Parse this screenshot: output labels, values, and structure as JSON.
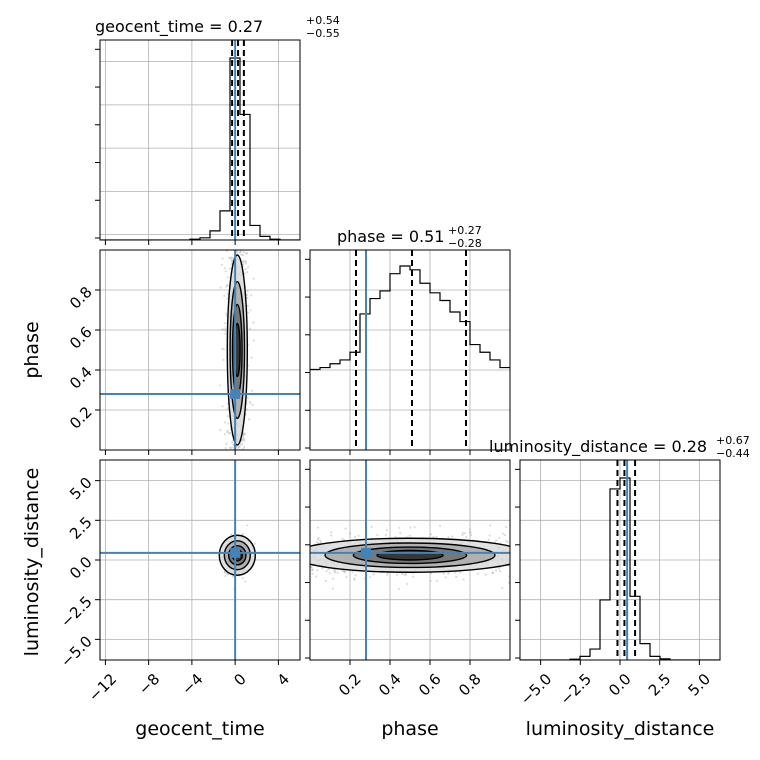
{
  "chart_data": {
    "type": "scatter",
    "parameters": [
      "geocent_time",
      "phase",
      "luminosity_distance"
    ],
    "truths": {
      "geocent_time": 0.0,
      "phase": 0.28,
      "luminosity_distance": 0.45
    },
    "colors": {
      "truth": "#4682b4",
      "hist": "#000000",
      "grid": "#b0b0b0",
      "scatter": "#9a9a9a",
      "density": "#000000"
    },
    "grid": true,
    "titles": {
      "geocent_time": {
        "prefix": "geocent_time = 0.27",
        "plus": "+0.54",
        "minus": "−0.55"
      },
      "phase": {
        "prefix": "phase = 0.51",
        "plus": "+0.27",
        "minus": "−0.28"
      },
      "luminosity_distance": {
        "prefix": "luminosity_distance = 0.28",
        "plus": "+0.67",
        "minus": "−0.44"
      }
    },
    "axes": {
      "geocent_time": {
        "label": "geocent_time",
        "range": [
          -12.5,
          6.0
        ],
        "ticks": [
          -12,
          -8,
          -4,
          0,
          4
        ],
        "tick_labels": [
          "−12",
          "−8",
          "−4",
          "0",
          "4"
        ]
      },
      "phase": {
        "label": "phase",
        "range": [
          0.0,
          1.0
        ],
        "ticks": [
          0.2,
          0.4,
          0.6,
          0.8
        ],
        "tick_labels": [
          "0.2",
          "0.4",
          "0.6",
          "0.8"
        ]
      },
      "luminosity_distance": {
        "label": "luminosity_distance",
        "range": [
          -6.3,
          6.3
        ],
        "ticks": [
          -5.0,
          -2.5,
          0.0,
          2.5,
          5.0
        ],
        "tick_labels": [
          "−5.0",
          "−2.5",
          "0.0",
          "2.5",
          "5.0"
        ]
      }
    },
    "quantile_lines": {
      "geocent_time": [
        -0.28,
        0.27,
        0.81
      ],
      "phase": [
        0.23,
        0.51,
        0.78
      ],
      "luminosity_distance": [
        -0.16,
        0.28,
        0.95
      ]
    },
    "histograms": {
      "geocent_time": {
        "edges": [
          -12.5,
          -11.575,
          -10.65,
          -9.725,
          -8.8,
          -7.875,
          -6.95,
          -6.025,
          -5.1,
          -4.175,
          -3.25,
          -2.325,
          -1.4,
          -0.475,
          0.45,
          1.375,
          2.3,
          3.225,
          4.15,
          5.075,
          6.0
        ],
        "counts": [
          0,
          0,
          0,
          0,
          0,
          0,
          0,
          0,
          0,
          0.004,
          0.012,
          0.05,
          0.16,
          1.0,
          0.69,
          0.08,
          0.02,
          0.004,
          0,
          0
        ]
      },
      "phase": {
        "edges": [
          0.0,
          0.05,
          0.1,
          0.15,
          0.2,
          0.25,
          0.3,
          0.35,
          0.4,
          0.45,
          0.5,
          0.55,
          0.6,
          0.65,
          0.7,
          0.75,
          0.8,
          0.85,
          0.9,
          0.95,
          1.0
        ],
        "counts": [
          0.42,
          0.43,
          0.45,
          0.47,
          0.51,
          0.71,
          0.79,
          0.83,
          0.92,
          0.96,
          0.94,
          0.87,
          0.82,
          0.78,
          0.72,
          0.67,
          0.55,
          0.51,
          0.47,
          0.43
        ]
      },
      "luminosity_distance": {
        "edges": [
          -6.3,
          -5.67,
          -5.04,
          -4.41,
          -3.78,
          -3.15,
          -2.52,
          -1.89,
          -1.26,
          -0.63,
          0.0,
          0.63,
          1.26,
          1.89,
          2.52,
          3.15,
          3.78,
          4.41,
          5.04,
          5.67,
          6.3
        ],
        "counts": [
          0,
          0,
          0,
          0,
          0,
          0.004,
          0.02,
          0.06,
          0.33,
          0.94,
          1.0,
          0.35,
          0.09,
          0.02,
          0.006,
          0,
          0,
          0,
          0,
          0
        ]
      }
    }
  }
}
